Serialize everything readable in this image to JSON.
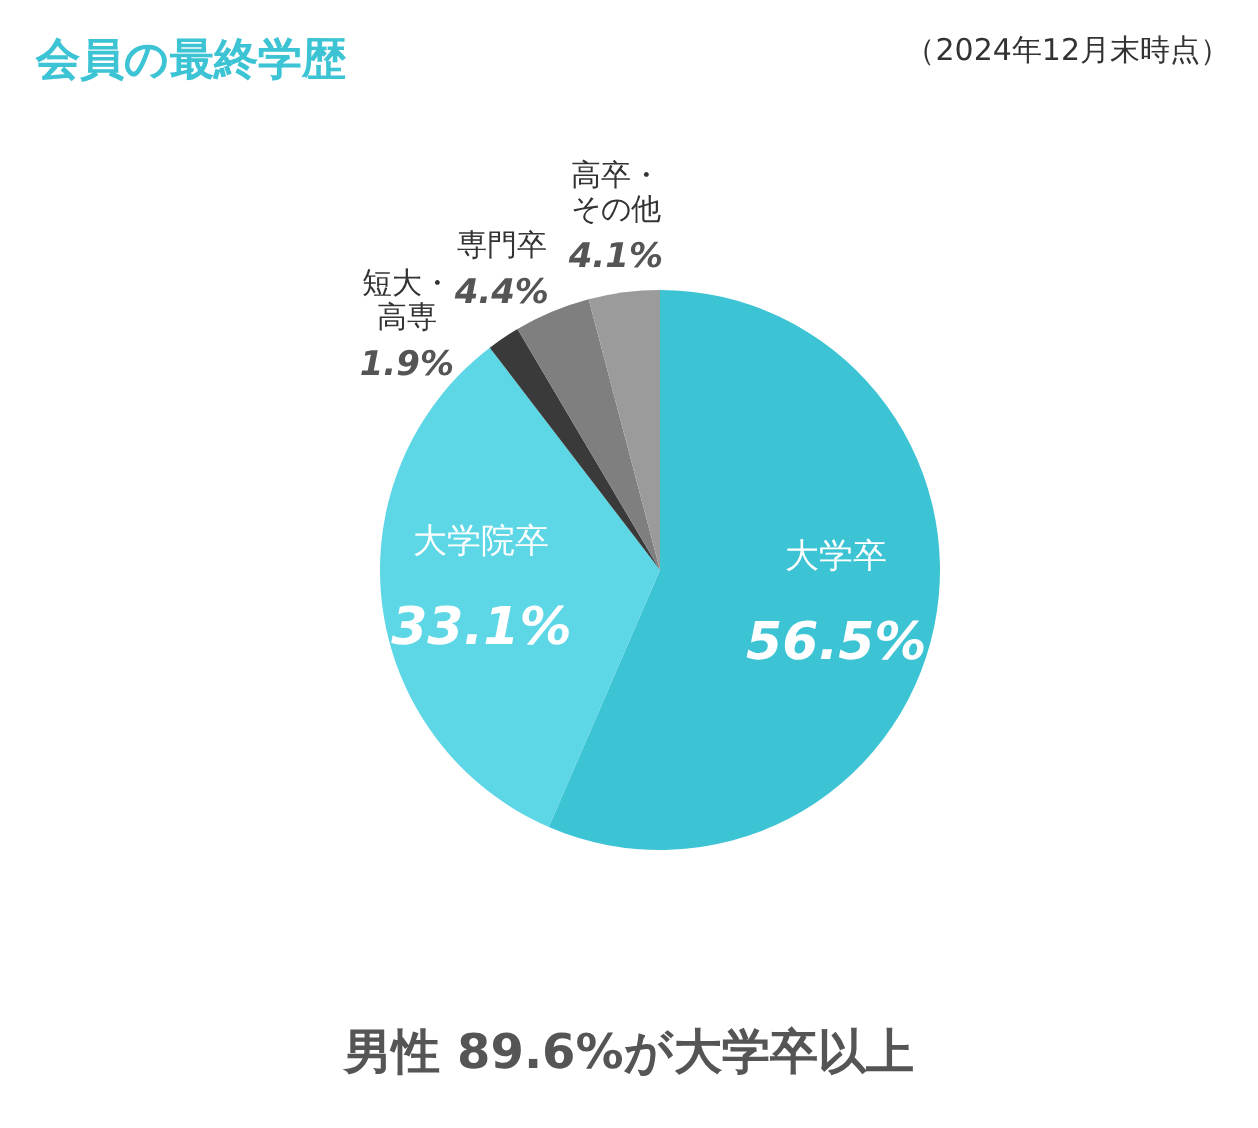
{
  "chart_data": {
    "type": "pie",
    "title": "会員の最終学歴",
    "subtitle": "（2024年12月末時点）",
    "categories": [
      "大学卒",
      "大学院卒",
      "短大・高専",
      "専門卒",
      "高卒・その他"
    ],
    "values": [
      56.5,
      33.1,
      1.9,
      4.4,
      4.1
    ],
    "colors": [
      "#3cc3d4",
      "#5dd6e6",
      "#3a3a3a",
      "#7f7f7f",
      "#9b9b9b"
    ],
    "value_labels": [
      "56.5%",
      "33.1%",
      "1.9%",
      "4.4%",
      "4.1%"
    ],
    "annotations": [
      "男性 89.6%が大学卒以上"
    ]
  }
}
